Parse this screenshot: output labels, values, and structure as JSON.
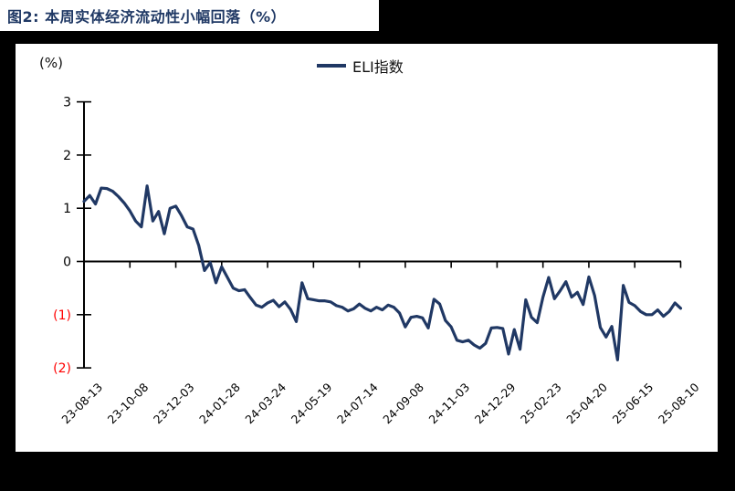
{
  "window": {
    "background": "#000000",
    "card_background": "#ffffff"
  },
  "figure": {
    "title": "图2:  本周实体经济流动性小幅回落（%）",
    "title_color": "#1f3864"
  },
  "chart_data": {
    "type": "line",
    "title": "图2: 本周实体经济流动性小幅回落（%）",
    "unit_label": "(%)",
    "legend": [
      {
        "label": "ELI指数",
        "color": "#203864"
      }
    ],
    "ylim": [
      -2,
      3
    ],
    "grid": false,
    "legend_position": "top-center",
    "negative_tick_color": "#ff0000",
    "yticks": [
      {
        "label": "3",
        "value": 3,
        "color": "#000000"
      },
      {
        "label": "2",
        "value": 2,
        "color": "#000000"
      },
      {
        "label": "1",
        "value": 1,
        "color": "#000000"
      },
      {
        "label": "0",
        "value": 0,
        "color": "#000000"
      },
      {
        "label": "(1)",
        "value": -1,
        "color": "#ff0000"
      },
      {
        "label": "(2)",
        "value": -2,
        "color": "#ff0000"
      }
    ],
    "x_tick_labels": [
      "23-08-13",
      "23-10-08",
      "23-12-03",
      "24-01-28",
      "24-03-24",
      "24-05-19",
      "24-07-14",
      "24-09-08",
      "24-11-03",
      "24-12-29",
      "25-02-23",
      "25-04-20",
      "25-06-15",
      "25-08-10"
    ],
    "points_per_tick": 8,
    "x_frequency": "weekly",
    "series": [
      {
        "name": "ELI指数",
        "color": "#203864",
        "values": [
          1.13,
          1.24,
          1.08,
          1.38,
          1.37,
          1.32,
          1.22,
          1.1,
          0.95,
          0.76,
          0.65,
          1.42,
          0.76,
          0.94,
          0.52,
          1.0,
          1.04,
          0.86,
          0.65,
          0.61,
          0.3,
          -0.17,
          -0.02,
          -0.4,
          -0.1,
          -0.3,
          -0.5,
          -0.55,
          -0.53,
          -0.68,
          -0.82,
          -0.86,
          -0.78,
          -0.73,
          -0.85,
          -0.76,
          -0.9,
          -1.13,
          -0.4,
          -0.7,
          -0.72,
          -0.74,
          -0.74,
          -0.76,
          -0.83,
          -0.86,
          -0.93,
          -0.89,
          -0.8,
          -0.88,
          -0.93,
          -0.86,
          -0.91,
          -0.82,
          -0.86,
          -0.97,
          -1.23,
          -1.05,
          -1.03,
          -1.06,
          -1.25,
          -0.71,
          -0.8,
          -1.11,
          -1.23,
          -1.48,
          -1.51,
          -1.48,
          -1.57,
          -1.63,
          -1.54,
          -1.25,
          -1.24,
          -1.26,
          -1.74,
          -1.28,
          -1.65,
          -0.72,
          -1.05,
          -1.15,
          -0.67,
          -0.3,
          -0.7,
          -0.55,
          -0.38,
          -0.67,
          -0.58,
          -0.81,
          -0.29,
          -0.64,
          -1.24,
          -1.42,
          -1.22,
          -1.85,
          -0.45,
          -0.77,
          -0.83,
          -0.94,
          -1.0,
          -1.0,
          -0.91,
          -1.03,
          -0.94,
          -0.78,
          -0.88
        ]
      }
    ]
  }
}
